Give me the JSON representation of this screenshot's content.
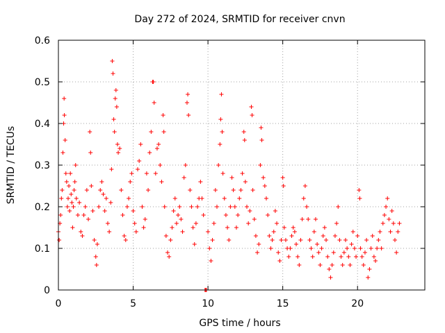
{
  "chart_data": {
    "type": "scatter",
    "title": "Day 272 of 2024, SRMTID for receiver cnvn",
    "xlabel": "GPS time / hours",
    "ylabel": "SRMTID / TECUs",
    "xlim": [
      0,
      24.5
    ],
    "ylim": [
      0,
      0.6
    ],
    "xticks": [
      0,
      5,
      10,
      15,
      20
    ],
    "yticks": [
      0,
      0.1,
      0.2,
      0.3,
      0.4,
      0.5,
      0.6
    ],
    "xtick_labels": [
      "0",
      "5",
      "10",
      "15",
      "20"
    ],
    "ytick_labels": [
      "0",
      "0.1",
      "0.2",
      "0.3",
      "0.4",
      "0.5",
      "0.6"
    ],
    "grid": true,
    "marker": "+",
    "marker_color": "#ff0000",
    "series": [
      {
        "name": "SRMTID",
        "points": [
          [
            0.0,
            0.14
          ],
          [
            0.05,
            0.12
          ],
          [
            0.1,
            0.16
          ],
          [
            0.15,
            0.18
          ],
          [
            0.2,
            0.22
          ],
          [
            0.25,
            0.24
          ],
          [
            0.3,
            0.33
          ],
          [
            0.35,
            0.4
          ],
          [
            0.38,
            0.46
          ],
          [
            0.4,
            0.42
          ],
          [
            0.45,
            0.36
          ],
          [
            0.5,
            0.28
          ],
          [
            0.55,
            0.26
          ],
          [
            0.6,
            0.2
          ],
          [
            0.65,
            0.22
          ],
          [
            0.7,
            0.25
          ],
          [
            0.75,
            0.19
          ],
          [
            0.8,
            0.28
          ],
          [
            0.85,
            0.23
          ],
          [
            0.9,
            0.21
          ],
          [
            0.95,
            0.15
          ],
          [
            1.0,
            0.2
          ],
          [
            1.05,
            0.24
          ],
          [
            1.1,
            0.26
          ],
          [
            1.15,
            0.3
          ],
          [
            1.2,
            0.22
          ],
          [
            1.3,
            0.18
          ],
          [
            1.4,
            0.21
          ],
          [
            1.5,
            0.14
          ],
          [
            1.6,
            0.13
          ],
          [
            1.7,
            0.18
          ],
          [
            1.8,
            0.2
          ],
          [
            1.9,
            0.24
          ],
          [
            2.0,
            0.17
          ],
          [
            2.1,
            0.38
          ],
          [
            2.15,
            0.33
          ],
          [
            2.2,
            0.25
          ],
          [
            2.3,
            0.19
          ],
          [
            2.4,
            0.12
          ],
          [
            2.5,
            0.08
          ],
          [
            2.55,
            0.06
          ],
          [
            2.6,
            0.11
          ],
          [
            2.7,
            0.2
          ],
          [
            2.8,
            0.24
          ],
          [
            2.9,
            0.26
          ],
          [
            3.0,
            0.23
          ],
          [
            3.1,
            0.19
          ],
          [
            3.2,
            0.22
          ],
          [
            3.3,
            0.16
          ],
          [
            3.4,
            0.14
          ],
          [
            3.5,
            0.21
          ],
          [
            3.55,
            0.29
          ],
          [
            3.6,
            0.55
          ],
          [
            3.65,
            0.52
          ],
          [
            3.7,
            0.41
          ],
          [
            3.75,
            0.38
          ],
          [
            3.8,
            0.46
          ],
          [
            3.85,
            0.48
          ],
          [
            3.9,
            0.44
          ],
          [
            3.95,
            0.35
          ],
          [
            4.0,
            0.33
          ],
          [
            4.1,
            0.34
          ],
          [
            4.2,
            0.24
          ],
          [
            4.3,
            0.18
          ],
          [
            4.4,
            0.13
          ],
          [
            4.5,
            0.12
          ],
          [
            4.6,
            0.2
          ],
          [
            4.7,
            0.22
          ],
          [
            4.8,
            0.26
          ],
          [
            4.9,
            0.28
          ],
          [
            5.0,
            0.19
          ],
          [
            5.1,
            0.16
          ],
          [
            5.2,
            0.14
          ],
          [
            5.3,
            0.29
          ],
          [
            5.4,
            0.31
          ],
          [
            5.5,
            0.35
          ],
          [
            5.6,
            0.2
          ],
          [
            5.7,
            0.15
          ],
          [
            5.8,
            0.17
          ],
          [
            5.9,
            0.28
          ],
          [
            6.0,
            0.24
          ],
          [
            6.1,
            0.33
          ],
          [
            6.2,
            0.38
          ],
          [
            6.3,
            0.5
          ],
          [
            6.35,
            0.5
          ],
          [
            6.4,
            0.45
          ],
          [
            6.5,
            0.28
          ],
          [
            6.6,
            0.34
          ],
          [
            6.7,
            0.35
          ],
          [
            6.8,
            0.3
          ],
          [
            6.9,
            0.26
          ],
          [
            7.0,
            0.42
          ],
          [
            7.05,
            0.38
          ],
          [
            7.1,
            0.2
          ],
          [
            7.2,
            0.13
          ],
          [
            7.3,
            0.09
          ],
          [
            7.4,
            0.08
          ],
          [
            7.5,
            0.12
          ],
          [
            7.6,
            0.15
          ],
          [
            7.7,
            0.19
          ],
          [
            7.8,
            0.22
          ],
          [
            7.9,
            0.16
          ],
          [
            8.0,
            0.18
          ],
          [
            8.1,
            0.2
          ],
          [
            8.2,
            0.17
          ],
          [
            8.3,
            0.14
          ],
          [
            8.4,
            0.27
          ],
          [
            8.5,
            0.3
          ],
          [
            8.6,
            0.45
          ],
          [
            8.65,
            0.47
          ],
          [
            8.7,
            0.42
          ],
          [
            8.8,
            0.24
          ],
          [
            8.9,
            0.2
          ],
          [
            9.0,
            0.15
          ],
          [
            9.1,
            0.11
          ],
          [
            9.2,
            0.16
          ],
          [
            9.3,
            0.2
          ],
          [
            9.4,
            0.22
          ],
          [
            9.5,
            0.26
          ],
          [
            9.6,
            0.22
          ],
          [
            9.7,
            0.18
          ],
          [
            9.8,
            0.0
          ],
          [
            9.85,
            0.0
          ],
          [
            9.9,
            0.0
          ],
          [
            10.0,
            0.14
          ],
          [
            10.1,
            0.1
          ],
          [
            10.2,
            0.07
          ],
          [
            10.3,
            0.12
          ],
          [
            10.4,
            0.16
          ],
          [
            10.5,
            0.24
          ],
          [
            10.6,
            0.2
          ],
          [
            10.7,
            0.3
          ],
          [
            10.8,
            0.35
          ],
          [
            10.85,
            0.41
          ],
          [
            10.9,
            0.47
          ],
          [
            10.95,
            0.38
          ],
          [
            11.0,
            0.28
          ],
          [
            11.1,
            0.22
          ],
          [
            11.2,
            0.18
          ],
          [
            11.3,
            0.15
          ],
          [
            11.4,
            0.12
          ],
          [
            11.5,
            0.2
          ],
          [
            11.6,
            0.27
          ],
          [
            11.7,
            0.24
          ],
          [
            11.8,
            0.2
          ],
          [
            11.9,
            0.15
          ],
          [
            12.0,
            0.18
          ],
          [
            12.1,
            0.22
          ],
          [
            12.2,
            0.24
          ],
          [
            12.3,
            0.28
          ],
          [
            12.4,
            0.38
          ],
          [
            12.45,
            0.36
          ],
          [
            12.5,
            0.26
          ],
          [
            12.6,
            0.2
          ],
          [
            12.7,
            0.16
          ],
          [
            12.8,
            0.19
          ],
          [
            12.9,
            0.44
          ],
          [
            12.95,
            0.42
          ],
          [
            13.0,
            0.24
          ],
          [
            13.1,
            0.17
          ],
          [
            13.2,
            0.13
          ],
          [
            13.3,
            0.09
          ],
          [
            13.4,
            0.11
          ],
          [
            13.5,
            0.3
          ],
          [
            13.55,
            0.39
          ],
          [
            13.6,
            0.36
          ],
          [
            13.7,
            0.27
          ],
          [
            13.8,
            0.25
          ],
          [
            13.9,
            0.22
          ],
          [
            14.0,
            0.18
          ],
          [
            14.1,
            0.13
          ],
          [
            14.2,
            0.1
          ],
          [
            14.3,
            0.12
          ],
          [
            14.4,
            0.14
          ],
          [
            14.5,
            0.19
          ],
          [
            14.6,
            0.16
          ],
          [
            14.7,
            0.09
          ],
          [
            14.8,
            0.07
          ],
          [
            14.9,
            0.12
          ],
          [
            15.0,
            0.27
          ],
          [
            15.05,
            0.25
          ],
          [
            15.1,
            0.15
          ],
          [
            15.2,
            0.12
          ],
          [
            15.3,
            0.1
          ],
          [
            15.4,
            0.08
          ],
          [
            15.5,
            0.1
          ],
          [
            15.6,
            0.13
          ],
          [
            15.7,
            0.15
          ],
          [
            15.8,
            0.14
          ],
          [
            15.9,
            0.11
          ],
          [
            16.0,
            0.08
          ],
          [
            16.1,
            0.06
          ],
          [
            16.2,
            0.12
          ],
          [
            16.3,
            0.17
          ],
          [
            16.4,
            0.22
          ],
          [
            16.5,
            0.25
          ],
          [
            16.6,
            0.2
          ],
          [
            16.7,
            0.17
          ],
          [
            16.8,
            0.12
          ],
          [
            16.9,
            0.1
          ],
          [
            17.0,
            0.08
          ],
          [
            17.1,
            0.14
          ],
          [
            17.2,
            0.17
          ],
          [
            17.3,
            0.11
          ],
          [
            17.4,
            0.09
          ],
          [
            17.5,
            0.06
          ],
          [
            17.6,
            0.1
          ],
          [
            17.7,
            0.13
          ],
          [
            17.8,
            0.15
          ],
          [
            17.9,
            0.12
          ],
          [
            18.0,
            0.08
          ],
          [
            18.1,
            0.05
          ],
          [
            18.2,
            0.03
          ],
          [
            18.3,
            0.06
          ],
          [
            18.4,
            0.09
          ],
          [
            18.5,
            0.13
          ],
          [
            18.6,
            0.16
          ],
          [
            18.7,
            0.2
          ],
          [
            18.8,
            0.12
          ],
          [
            18.9,
            0.08
          ],
          [
            19.0,
            0.06
          ],
          [
            19.1,
            0.09
          ],
          [
            19.2,
            0.12
          ],
          [
            19.3,
            0.1
          ],
          [
            19.4,
            0.08
          ],
          [
            19.5,
            0.06
          ],
          [
            19.6,
            0.11
          ],
          [
            19.7,
            0.14
          ],
          [
            19.8,
            0.1
          ],
          [
            19.9,
            0.08
          ],
          [
            20.0,
            0.13
          ],
          [
            20.1,
            0.24
          ],
          [
            20.15,
            0.22
          ],
          [
            20.2,
            0.1
          ],
          [
            20.3,
            0.08
          ],
          [
            20.4,
            0.06
          ],
          [
            20.5,
            0.09
          ],
          [
            20.6,
            0.12
          ],
          [
            20.7,
            0.03
          ],
          [
            20.8,
            0.05
          ],
          [
            20.9,
            0.1
          ],
          [
            21.0,
            0.13
          ],
          [
            21.1,
            0.08
          ],
          [
            21.2,
            0.07
          ],
          [
            21.3,
            0.1
          ],
          [
            21.4,
            0.12
          ],
          [
            21.5,
            0.14
          ],
          [
            21.6,
            0.1
          ],
          [
            21.7,
            0.16
          ],
          [
            21.8,
            0.18
          ],
          [
            21.9,
            0.2
          ],
          [
            22.0,
            0.22
          ],
          [
            22.1,
            0.17
          ],
          [
            22.2,
            0.14
          ],
          [
            22.3,
            0.19
          ],
          [
            22.4,
            0.16
          ],
          [
            22.5,
            0.12
          ],
          [
            22.6,
            0.09
          ],
          [
            22.7,
            0.14
          ],
          [
            22.8,
            0.16
          ]
        ]
      }
    ]
  }
}
